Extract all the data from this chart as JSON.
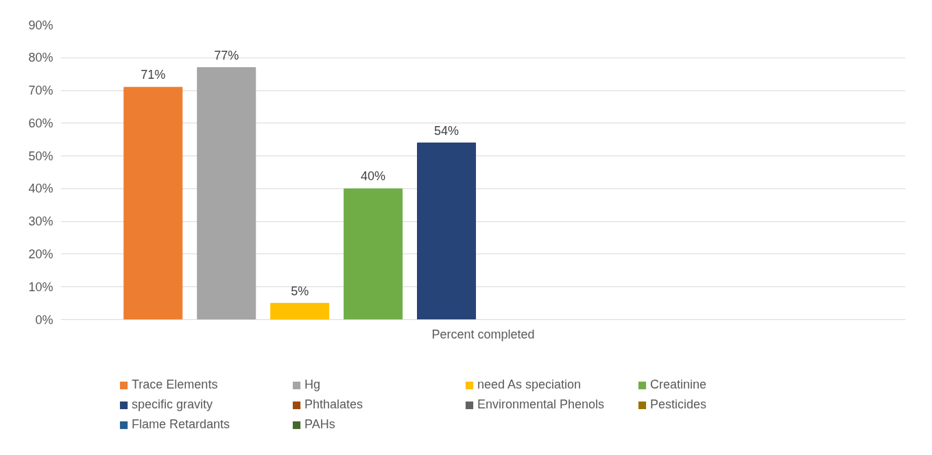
{
  "chart_data": {
    "type": "bar",
    "categories": [
      "Percent completed"
    ],
    "series": [
      {
        "name": "Trace Elements",
        "color": "#ed7d31",
        "values": [
          71
        ],
        "value_labels": [
          "71%"
        ]
      },
      {
        "name": "Hg",
        "color": "#a5a5a5",
        "values": [
          77
        ],
        "value_labels": [
          "77%"
        ]
      },
      {
        "name": "need As speciation",
        "color": "#ffc000",
        "values": [
          5
        ],
        "value_labels": [
          "5%"
        ]
      },
      {
        "name": "Creatinine",
        "color": "#70ad47",
        "values": [
          40
        ],
        "value_labels": [
          "40%"
        ]
      },
      {
        "name": "specific gravity",
        "color": "#264478",
        "values": [
          54
        ],
        "value_labels": [
          "54%"
        ]
      },
      {
        "name": "Phthalates",
        "color": "#9e480e",
        "values": [
          null
        ]
      },
      {
        "name": "Environmental Phenols",
        "color": "#636363",
        "values": [
          null
        ]
      },
      {
        "name": "Pesticides",
        "color": "#997300",
        "values": [
          null
        ]
      },
      {
        "name": "Flame Retardants",
        "color": "#255e91",
        "values": [
          null
        ]
      },
      {
        "name": "PAHs",
        "color": "#43682b",
        "values": [
          null
        ]
      }
    ],
    "ylim": [
      0,
      90
    ],
    "yticks": [
      {
        "value": 0,
        "label": "0%"
      },
      {
        "value": 10,
        "label": "10%"
      },
      {
        "value": 20,
        "label": "20%"
      },
      {
        "value": 30,
        "label": "30%"
      },
      {
        "value": 40,
        "label": "40%"
      },
      {
        "value": 50,
        "label": "50%"
      },
      {
        "value": 60,
        "label": "60%"
      },
      {
        "value": 70,
        "label": "70%"
      },
      {
        "value": 80,
        "label": "80%"
      },
      {
        "value": 90,
        "label": "90%"
      }
    ],
    "grid": "y",
    "legend": "bottom"
  }
}
